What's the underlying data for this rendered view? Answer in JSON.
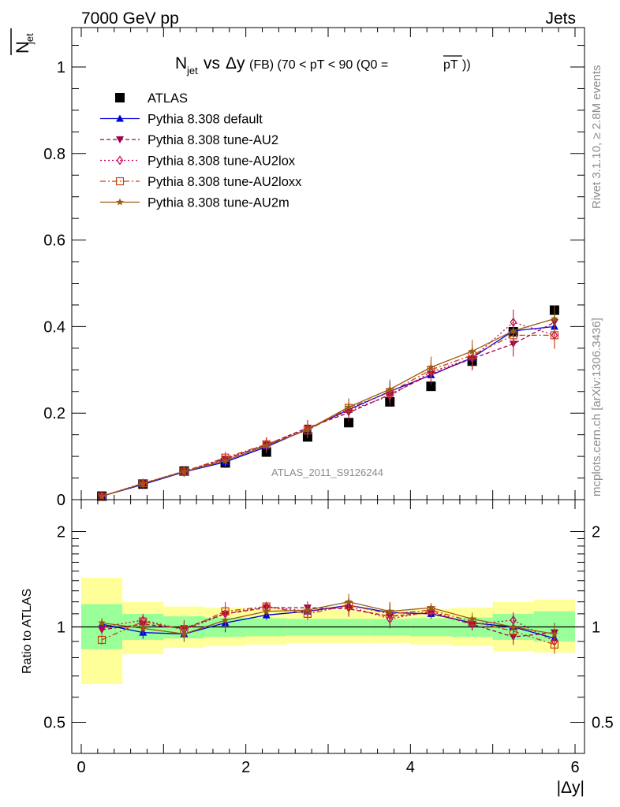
{
  "header": {
    "left": "7000 GeV pp",
    "right": "Jets"
  },
  "side_labels": {
    "rivet": "Rivet 3.1.10, ≥ 2.8M events",
    "mcplots": "mcplots.cern.ch [arXiv:1306.3436]"
  },
  "chart_data": [
    {
      "type": "line",
      "title": "N_jet vs Δy (FB) (70 < pT <  90 (Q0 =pT))",
      "ylabel": "N_jet (overlined)",
      "xlabel": "|Δy|",
      "watermark": "ATLAS_2011_S9126244",
      "xlim": [
        -0.15,
        6.1
      ],
      "ylim": [
        0,
        1.09
      ],
      "xticks": [
        0,
        2,
        4,
        6
      ],
      "yticks": [
        0,
        0.2,
        0.4,
        0.6,
        0.8,
        1
      ],
      "ytick_labels": [
        "0",
        "0.2",
        "0.4",
        "0.6",
        "0.8",
        "1"
      ],
      "legend_position": "top-left",
      "x": [
        0.25,
        0.75,
        1.25,
        1.75,
        2.25,
        2.75,
        3.25,
        3.75,
        4.25,
        4.75,
        5.25,
        5.75
      ],
      "series": [
        {
          "name": "ATLAS",
          "color": "#000000",
          "marker": "square",
          "line": "none",
          "values": [
            0.008,
            0.036,
            0.066,
            0.085,
            0.11,
            0.145,
            0.178,
            0.226,
            0.262,
            0.32,
            0.388,
            0.438
          ]
        },
        {
          "name": "Pythia 8.308 default",
          "color": "#0000dd",
          "marker": "triangle-up",
          "line": "solid",
          "values": [
            0.008,
            0.035,
            0.064,
            0.087,
            0.122,
            0.163,
            0.208,
            0.25,
            0.288,
            0.328,
            0.39,
            0.4
          ]
        },
        {
          "name": "Pythia 8.308 tune-AU2",
          "color": "#a0004a",
          "marker": "triangle-down",
          "line": "dashed",
          "values": [
            0.008,
            0.037,
            0.066,
            0.094,
            0.127,
            0.166,
            0.201,
            0.243,
            0.29,
            0.326,
            0.36,
            0.41
          ]
        },
        {
          "name": "Pythia 8.308 tune-AU2lox",
          "color": "#c0005a",
          "marker": "diamond-open",
          "line": "dotted",
          "values": [
            0.008,
            0.038,
            0.065,
            0.093,
            0.128,
            0.163,
            0.206,
            0.24,
            0.295,
            0.327,
            0.41,
            0.38
          ]
        },
        {
          "name": "Pythia 8.308 tune-AU2loxx",
          "color": "#c84010",
          "marker": "square-open",
          "line": "dashdot",
          "values": [
            0.007,
            0.038,
            0.065,
            0.097,
            0.128,
            0.16,
            0.212,
            0.248,
            0.3,
            0.334,
            0.38,
            0.38
          ]
        },
        {
          "name": "Pythia 8.308 tune-AU2m",
          "color": "#9a5a10",
          "marker": "star",
          "line": "solid",
          "values": [
            0.008,
            0.037,
            0.065,
            0.09,
            0.125,
            0.162,
            0.214,
            0.255,
            0.306,
            0.343,
            0.39,
            0.418
          ]
        }
      ]
    },
    {
      "type": "line",
      "title": "",
      "ylabel": "Ratio to ATLAS",
      "xlabel": "|Δy|",
      "ylim": [
        0.4,
        2.3
      ],
      "log_y": true,
      "yticks": [
        0.5,
        1,
        2
      ],
      "ytick_labels": [
        "0.5",
        "1",
        "2"
      ],
      "reference_line": 1,
      "bands": {
        "edges": [
          0,
          0.5,
          1,
          1.5,
          2,
          2.5,
          3,
          3.5,
          4,
          4.5,
          5,
          5.5,
          6
        ],
        "inner_color": "#99ff99",
        "outer_color": "#ffff99",
        "inner_lo": [
          0.85,
          0.91,
          0.92,
          0.93,
          0.935,
          0.94,
          0.94,
          0.94,
          0.935,
          0.93,
          0.91,
          0.9
        ],
        "inner_hi": [
          1.18,
          1.1,
          1.08,
          1.07,
          1.065,
          1.06,
          1.06,
          1.06,
          1.065,
          1.07,
          1.1,
          1.12
        ],
        "outer_lo": [
          0.66,
          0.82,
          0.86,
          0.87,
          0.88,
          0.89,
          0.89,
          0.89,
          0.88,
          0.87,
          0.84,
          0.83
        ],
        "outer_hi": [
          1.43,
          1.2,
          1.16,
          1.15,
          1.14,
          1.13,
          1.13,
          1.13,
          1.14,
          1.15,
          1.2,
          1.22
        ]
      },
      "x": [
        0.25,
        0.75,
        1.25,
        1.75,
        2.25,
        2.75,
        3.25,
        3.75,
        4.25,
        4.75,
        5.25,
        5.75
      ],
      "series": [
        {
          "name": "Pythia 8.308 default",
          "color": "#0000dd",
          "marker": "triangle-up",
          "line": "solid",
          "values": [
            1.02,
            0.96,
            0.95,
            1.03,
            1.09,
            1.12,
            1.17,
            1.11,
            1.1,
            1.03,
            1.0,
            0.92
          ]
        },
        {
          "name": "Pythia 8.308 tune-AU2",
          "color": "#a0004a",
          "marker": "triangle-down",
          "line": "dashed",
          "values": [
            0.98,
            1.02,
            0.99,
            1.1,
            1.15,
            1.15,
            1.14,
            1.08,
            1.11,
            1.02,
            0.93,
            0.96
          ]
        },
        {
          "name": "Pythia 8.308 tune-AU2lox",
          "color": "#c0005a",
          "marker": "diamond-open",
          "line": "dotted",
          "values": [
            1.0,
            1.05,
            0.98,
            1.1,
            1.16,
            1.12,
            1.16,
            1.06,
            1.12,
            1.02,
            1.05,
            0.9
          ]
        },
        {
          "name": "Pythia 8.308 tune-AU2loxx",
          "color": "#c84010",
          "marker": "square-open",
          "line": "dashdot",
          "values": [
            0.91,
            1.04,
            0.98,
            1.12,
            1.16,
            1.1,
            1.17,
            1.1,
            1.13,
            1.04,
            0.97,
            0.88
          ]
        },
        {
          "name": "Pythia 8.308 tune-AU2m",
          "color": "#9a5a10",
          "marker": "star",
          "line": "solid",
          "values": [
            1.03,
            0.99,
            0.95,
            1.05,
            1.12,
            1.13,
            1.2,
            1.12,
            1.15,
            1.06,
            1.0,
            0.95
          ]
        }
      ]
    }
  ]
}
